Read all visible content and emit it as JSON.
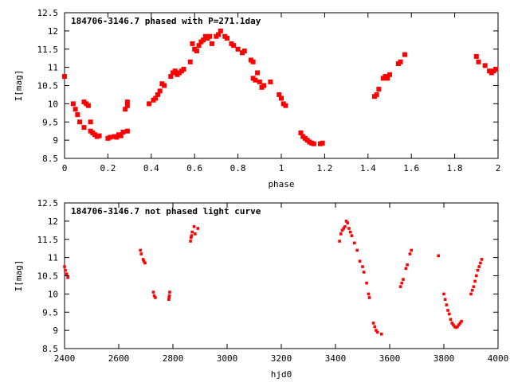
{
  "chart_data": [
    {
      "type": "scatter",
      "title": "184706-3146.7 phased with P=271.1day",
      "xlabel": "phase",
      "ylabel": "I[mag]",
      "xlim": [
        0,
        2
      ],
      "ylim": [
        12.5,
        8.5
      ],
      "y_inverted": true,
      "xticks": [
        "0",
        "0.2",
        "0.4",
        "0.6",
        "0.8",
        "1",
        "1.2",
        "1.4",
        "1.6",
        "1.8",
        "2"
      ],
      "yticks": [
        "8.5",
        "9",
        "9.5",
        "10",
        "10.5",
        "11",
        "11.5",
        "12",
        "12.5"
      ],
      "marker_color": "#ff0000",
      "grid": false,
      "series": [
        {
          "values": [
            [
              0.0,
              10.75
            ],
            [
              0.04,
              10.0
            ],
            [
              0.05,
              9.85
            ],
            [
              0.06,
              9.7
            ],
            [
              0.07,
              9.5
            ],
            [
              0.09,
              9.35
            ],
            [
              0.09,
              10.05
            ],
            [
              0.1,
              10.0
            ],
            [
              0.11,
              9.95
            ],
            [
              0.12,
              9.5
            ],
            [
              0.12,
              9.25
            ],
            [
              0.13,
              9.2
            ],
            [
              0.14,
              9.15
            ],
            [
              0.15,
              9.1
            ],
            [
              0.16,
              9.12
            ],
            [
              0.2,
              9.05
            ],
            [
              0.21,
              9.08
            ],
            [
              0.23,
              9.1
            ],
            [
              0.24,
              9.08
            ],
            [
              0.25,
              9.15
            ],
            [
              0.26,
              9.12
            ],
            [
              0.27,
              9.22
            ],
            [
              0.29,
              9.25
            ],
            [
              0.28,
              9.85
            ],
            [
              0.29,
              9.95
            ],
            [
              0.29,
              10.05
            ],
            [
              0.39,
              10.0
            ],
            [
              0.41,
              10.1
            ],
            [
              0.42,
              10.15
            ],
            [
              0.43,
              10.25
            ],
            [
              0.44,
              10.35
            ],
            [
              0.45,
              10.55
            ],
            [
              0.46,
              10.5
            ],
            [
              0.49,
              10.75
            ],
            [
              0.5,
              10.85
            ],
            [
              0.51,
              10.9
            ],
            [
              0.52,
              10.8
            ],
            [
              0.53,
              10.85
            ],
            [
              0.54,
              10.9
            ],
            [
              0.55,
              10.95
            ],
            [
              0.58,
              11.15
            ],
            [
              0.59,
              11.65
            ],
            [
              0.6,
              11.5
            ],
            [
              0.61,
              11.45
            ],
            [
              0.62,
              11.6
            ],
            [
              0.63,
              11.7
            ],
            [
              0.64,
              11.75
            ],
            [
              0.65,
              11.85
            ],
            [
              0.66,
              11.8
            ],
            [
              0.67,
              11.85
            ],
            [
              0.68,
              11.65
            ],
            [
              0.7,
              11.85
            ],
            [
              0.71,
              11.9
            ],
            [
              0.72,
              12.0
            ],
            [
              0.74,
              11.85
            ],
            [
              0.75,
              11.8
            ],
            [
              0.77,
              11.65
            ],
            [
              0.78,
              11.6
            ],
            [
              0.8,
              11.5
            ],
            [
              0.82,
              11.4
            ],
            [
              0.83,
              11.45
            ],
            [
              0.86,
              11.2
            ],
            [
              0.87,
              11.15
            ],
            [
              0.87,
              10.7
            ],
            [
              0.88,
              10.65
            ],
            [
              0.89,
              10.85
            ],
            [
              0.9,
              10.6
            ],
            [
              0.91,
              10.45
            ],
            [
              0.92,
              10.5
            ],
            [
              0.95,
              10.6
            ],
            [
              0.99,
              10.25
            ],
            [
              1.0,
              10.15
            ],
            [
              1.01,
              10.0
            ],
            [
              1.02,
              9.95
            ],
            [
              1.09,
              9.2
            ],
            [
              1.1,
              9.1
            ],
            [
              1.11,
              9.05
            ],
            [
              1.12,
              9.0
            ],
            [
              1.13,
              8.95
            ],
            [
              1.14,
              8.92
            ],
            [
              1.15,
              8.9
            ],
            [
              1.18,
              8.9
            ],
            [
              1.19,
              8.92
            ],
            [
              1.43,
              10.2
            ],
            [
              1.44,
              10.25
            ],
            [
              1.45,
              10.4
            ],
            [
              1.47,
              10.7
            ],
            [
              1.48,
              10.75
            ],
            [
              1.49,
              10.7
            ],
            [
              1.5,
              10.8
            ],
            [
              1.54,
              11.1
            ],
            [
              1.55,
              11.15
            ],
            [
              1.57,
              11.35
            ],
            [
              1.9,
              11.3
            ],
            [
              1.91,
              11.15
            ],
            [
              1.94,
              11.05
            ],
            [
              1.96,
              10.9
            ],
            [
              1.97,
              10.85
            ],
            [
              1.98,
              10.9
            ],
            [
              1.99,
              10.95
            ]
          ]
        }
      ]
    },
    {
      "type": "scatter",
      "title": "184706-3146.7 not phased light curve",
      "xlabel": "hjd0",
      "ylabel": "I[mag]",
      "xlim": [
        2400,
        4000
      ],
      "ylim": [
        12.5,
        8.5
      ],
      "y_inverted": true,
      "xticks": [
        "2400",
        "2600",
        "2800",
        "3000",
        "3200",
        "3400",
        "3600",
        "3800",
        "4000"
      ],
      "yticks": [
        "8.5",
        "9",
        "9.5",
        "10",
        "10.5",
        "11",
        "11.5",
        "12",
        "12.5"
      ],
      "marker_color": "#ff0000",
      "grid": false,
      "series": [
        {
          "values": [
            [
              2400,
              10.75
            ],
            [
              2403,
              10.65
            ],
            [
              2408,
              10.55
            ],
            [
              2412,
              10.45
            ],
            [
              2680,
              11.2
            ],
            [
              2683,
              11.1
            ],
            [
              2690,
              10.95
            ],
            [
              2693,
              10.9
            ],
            [
              2697,
              10.85
            ],
            [
              2728,
              10.05
            ],
            [
              2731,
              9.95
            ],
            [
              2735,
              9.9
            ],
            [
              2785,
              9.85
            ],
            [
              2786,
              9.9
            ],
            [
              2787,
              9.95
            ],
            [
              2788,
              10.05
            ],
            [
              2865,
              11.45
            ],
            [
              2867,
              11.55
            ],
            [
              2869,
              11.6
            ],
            [
              2871,
              11.7
            ],
            [
              2878,
              11.85
            ],
            [
              2882,
              11.65
            ],
            [
              2892,
              11.8
            ],
            [
              3415,
              11.45
            ],
            [
              3420,
              11.65
            ],
            [
              3425,
              11.75
            ],
            [
              3430,
              11.8
            ],
            [
              3435,
              11.85
            ],
            [
              3440,
              12.0
            ],
            [
              3445,
              11.95
            ],
            [
              3450,
              11.8
            ],
            [
              3455,
              11.7
            ],
            [
              3460,
              11.6
            ],
            [
              3470,
              11.4
            ],
            [
              3480,
              11.2
            ],
            [
              3490,
              10.9
            ],
            [
              3500,
              10.75
            ],
            [
              3505,
              10.6
            ],
            [
              3515,
              10.3
            ],
            [
              3522,
              10.0
            ],
            [
              3525,
              9.9
            ],
            [
              3540,
              9.2
            ],
            [
              3545,
              9.1
            ],
            [
              3550,
              9.0
            ],
            [
              3555,
              8.95
            ],
            [
              3570,
              8.9
            ],
            [
              3640,
              10.2
            ],
            [
              3645,
              10.3
            ],
            [
              3650,
              10.4
            ],
            [
              3660,
              10.7
            ],
            [
              3665,
              10.8
            ],
            [
              3675,
              11.1
            ],
            [
              3680,
              11.2
            ],
            [
              3780,
              11.05
            ],
            [
              3800,
              10.0
            ],
            [
              3805,
              9.85
            ],
            [
              3810,
              9.7
            ],
            [
              3815,
              9.55
            ],
            [
              3820,
              9.45
            ],
            [
              3825,
              9.3
            ],
            [
              3830,
              9.2
            ],
            [
              3835,
              9.15
            ],
            [
              3840,
              9.1
            ],
            [
              3845,
              9.08
            ],
            [
              3850,
              9.1
            ],
            [
              3855,
              9.15
            ],
            [
              3860,
              9.2
            ],
            [
              3865,
              9.25
            ],
            [
              3900,
              10.0
            ],
            [
              3905,
              10.1
            ],
            [
              3910,
              10.2
            ],
            [
              3915,
              10.35
            ],
            [
              3920,
              10.5
            ],
            [
              3925,
              10.65
            ],
            [
              3930,
              10.75
            ],
            [
              3935,
              10.85
            ],
            [
              3940,
              10.95
            ]
          ]
        }
      ]
    }
  ]
}
